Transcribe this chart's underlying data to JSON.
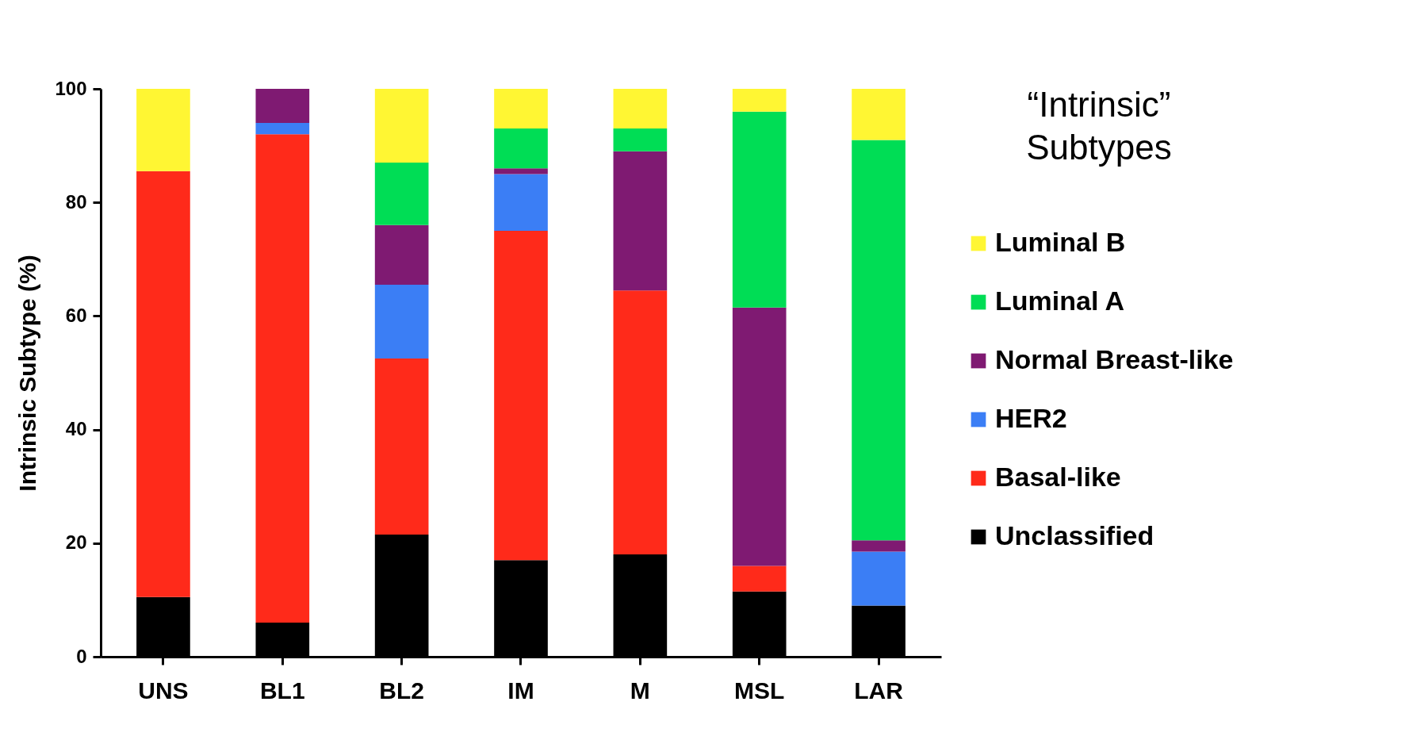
{
  "chart_data": {
    "type": "bar",
    "stacked": true,
    "ylabel": "Intrinsic Subtype (%)",
    "legend_title": "“Intrinsic” Subtypes",
    "legend": "right",
    "grid": false,
    "categories": [
      "UNS",
      "BL1",
      "BL2",
      "IM",
      "M",
      "MSL",
      "LAR"
    ],
    "ylim": [
      0,
      100
    ],
    "yticks": [
      0,
      20,
      40,
      60,
      80,
      100
    ],
    "series": [
      {
        "name": "Unclassified",
        "color": "#000000",
        "values": [
          10.5,
          6,
          21.5,
          17,
          18,
          11.5,
          9
        ]
      },
      {
        "name": "Basal-like",
        "color": "#ff2a1a",
        "values": [
          75,
          86,
          31,
          58,
          46.5,
          4.5,
          0
        ]
      },
      {
        "name": "HER2",
        "color": "#3b7ef5",
        "values": [
          0,
          2,
          13,
          10,
          0,
          0,
          9.5
        ]
      },
      {
        "name": "Normal Breast-like",
        "color": "#7f1a72",
        "values": [
          0,
          6,
          10.5,
          1,
          24.5,
          45.5,
          2
        ]
      },
      {
        "name": "Luminal A",
        "color": "#00dd55",
        "values": [
          0,
          0,
          11,
          7,
          4,
          34.5,
          70.5
        ]
      },
      {
        "name": "Luminal B",
        "color": "#fff633",
        "values": [
          14.5,
          0,
          13,
          7,
          7,
          4,
          9
        ]
      }
    ]
  }
}
